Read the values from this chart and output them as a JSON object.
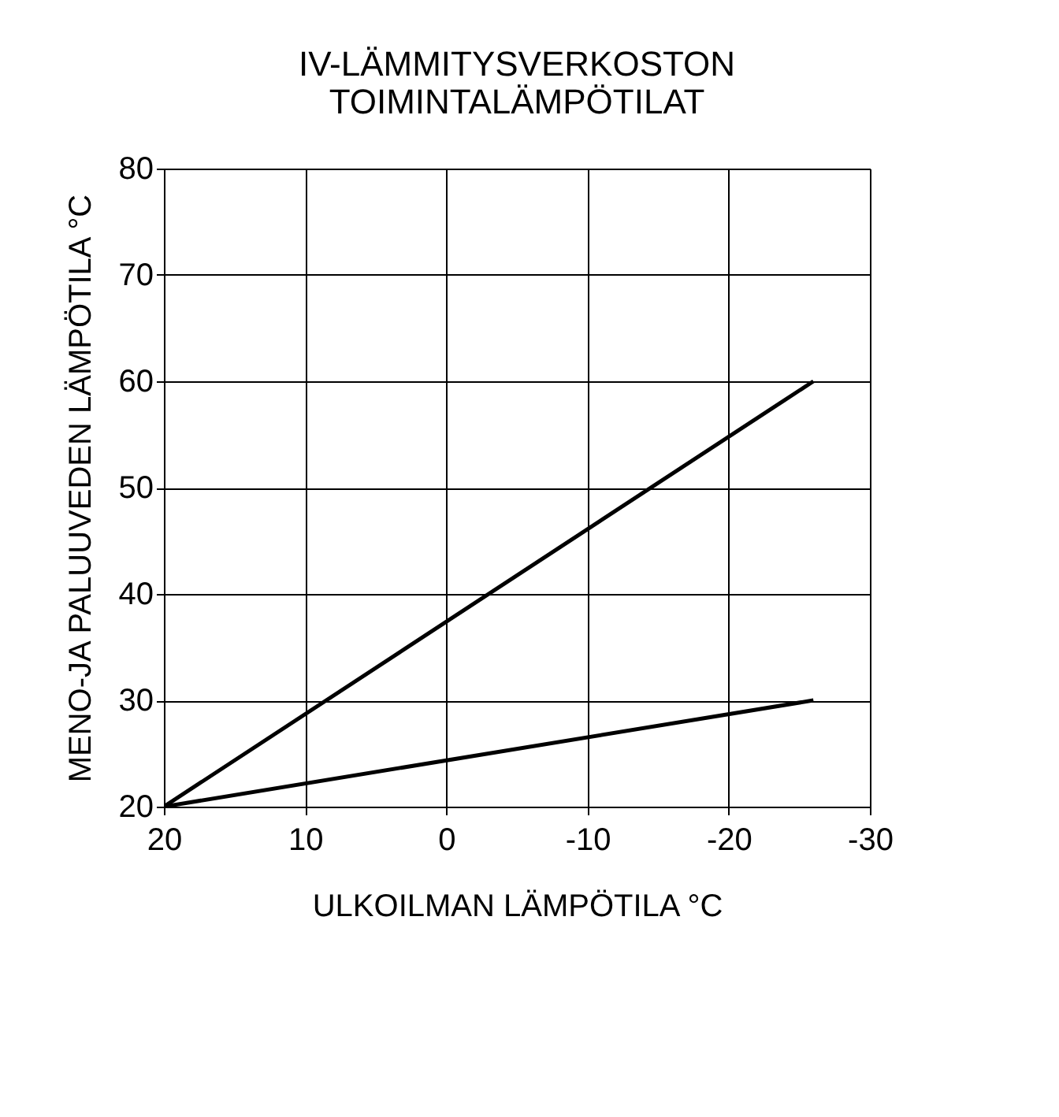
{
  "chart_data": {
    "type": "line",
    "title": [
      "IV-LÄMMITYSVERKOSTON",
      "TOIMINTALÄMPÖTILAT"
    ],
    "xlabel": "ULKOILMAN LÄMPÖTILA °C",
    "ylabel": "MENO-JA PALUUVEDEN LÄMPÖTILA °C",
    "x": [
      20,
      -26
    ],
    "series": [
      {
        "color": "#000000",
        "values": [
          20,
          60
        ]
      },
      {
        "color": "#000000",
        "values": [
          20,
          30
        ]
      }
    ],
    "xlim": [
      20,
      -30
    ],
    "xticks": [
      20,
      10,
      0,
      -10,
      -20,
      -30
    ],
    "ylim": [
      20,
      80
    ],
    "yticks": [
      20,
      30,
      40,
      50,
      60,
      70,
      80
    ],
    "grid": true,
    "line_style": "solid"
  }
}
